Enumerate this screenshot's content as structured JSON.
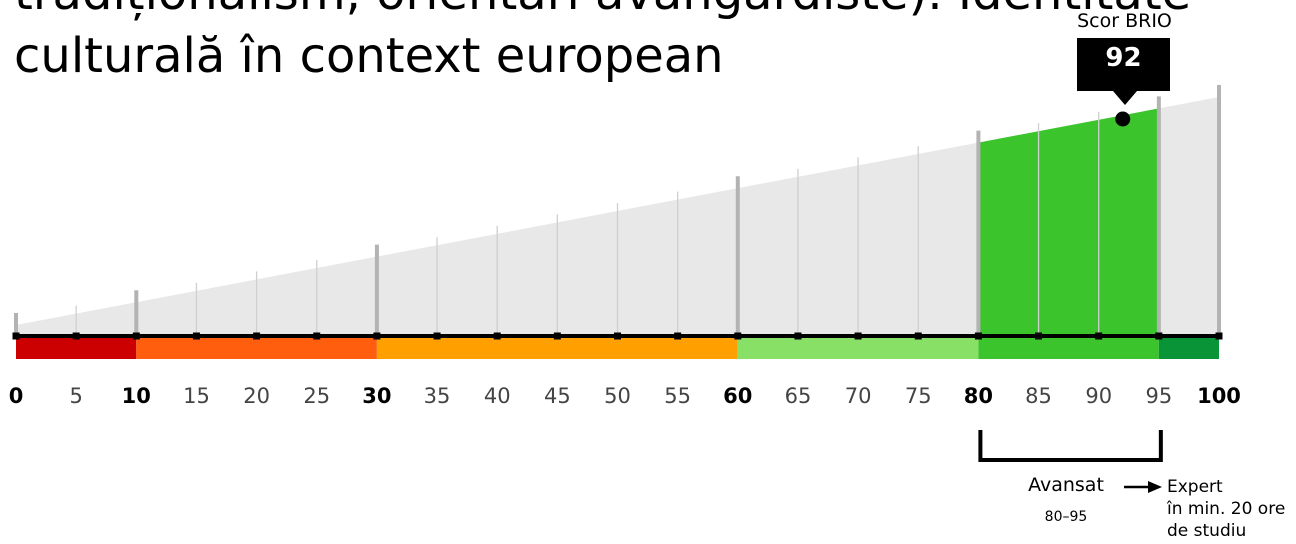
{
  "title": {
    "line1": "tradiționalism, orientări avangardiste). Identitate",
    "line2": "culturală în context european"
  },
  "score": {
    "label": "Scor BRIO",
    "value": 92
  },
  "level": {
    "name": "Avansat",
    "range": "80–95",
    "next_line1": "Expert",
    "next_line2": "în min. 20 ore",
    "next_line3": "de studiu"
  },
  "chart_data": {
    "type": "bar",
    "xlim": [
      0,
      100
    ],
    "ticks": [
      0,
      5,
      10,
      15,
      20,
      25,
      30,
      35,
      40,
      45,
      50,
      55,
      60,
      65,
      70,
      75,
      80,
      85,
      90,
      95,
      100
    ],
    "major_ticks": [
      0,
      10,
      30,
      60,
      80,
      95,
      100
    ],
    "bands": [
      {
        "from": 0,
        "to": 10,
        "color": "#cc0000"
      },
      {
        "from": 10,
        "to": 30,
        "color": "#ff5e0e"
      },
      {
        "from": 30,
        "to": 60,
        "color": "#ffa000"
      },
      {
        "from": 60,
        "to": 80,
        "color": "#88e066"
      },
      {
        "from": 80,
        "to": 95,
        "color": "#3cc42d"
      },
      {
        "from": 95,
        "to": 100,
        "color": "#0a9438"
      }
    ],
    "highlight_range": [
      80,
      95
    ],
    "highlight_color": "#3cc42d",
    "background_wedge_color": "#e8e8e8",
    "marker_value": 92
  }
}
